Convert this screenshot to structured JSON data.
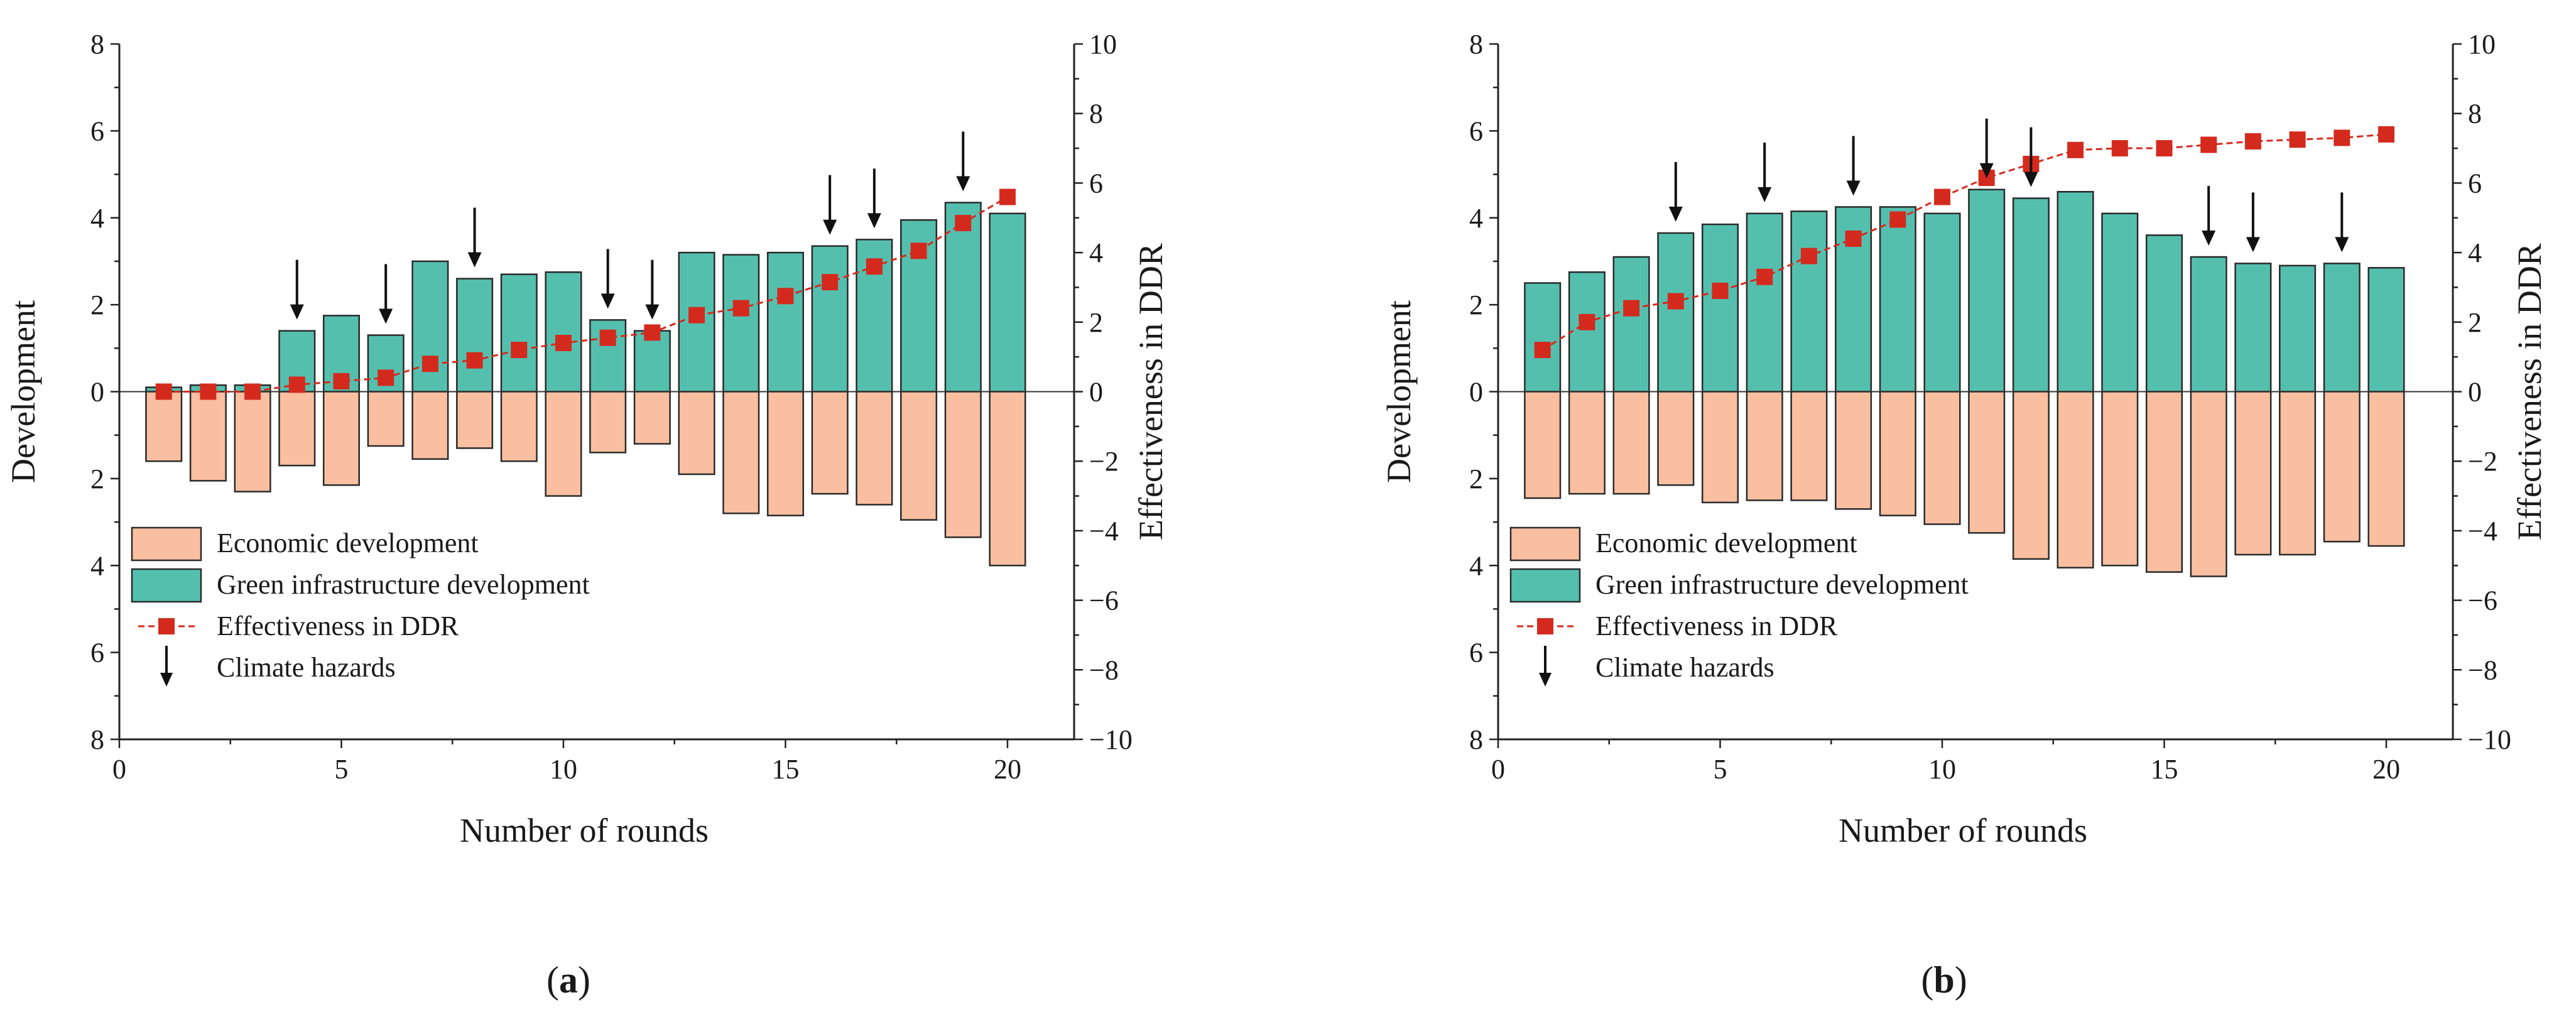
{
  "colors": {
    "economic_fill": "#F9BFA0",
    "green_fill": "#55BFAE",
    "bar_stroke": "#2a2a2a",
    "effectiveness": "#D42A1E",
    "arrow": "#111111"
  },
  "panels": [
    {
      "label_prefix": "(",
      "label_letter": "a",
      "label_suffix": ")"
    },
    {
      "label_prefix": "(",
      "label_letter": "b",
      "label_suffix": ")"
    }
  ],
  "chart_data": [
    {
      "type": "bar",
      "panel": "a",
      "xlabel": "Number of rounds",
      "ylabel_left": "Development",
      "ylabel_right": "Effectiveness in DDR",
      "xlim": [
        0,
        21.5
      ],
      "ylim_left": [
        -8,
        8
      ],
      "ylim_right": [
        -10,
        10
      ],
      "x_ticks": [
        0,
        5,
        10,
        15,
        20
      ],
      "x_tick_labels": [
        "0",
        "5",
        "10",
        "15",
        "20"
      ],
      "y_left_ticks": [
        8,
        6,
        4,
        2,
        0,
        -2,
        -4,
        -6,
        -8
      ],
      "y_left_tick_labels": [
        "8",
        "6",
        "4",
        "2",
        "0",
        "2",
        "4",
        "6",
        "8"
      ],
      "y_right_ticks": [
        10,
        8,
        6,
        4,
        2,
        0,
        -2,
        -4,
        -6,
        -8,
        -10
      ],
      "y_right_tick_labels": [
        "10",
        "8",
        "6",
        "4",
        "2",
        "0",
        "−2",
        "−4",
        "−6",
        "−8",
        "−10"
      ],
      "legend": {
        "location": "lower-left",
        "economic": "Economic development",
        "green": "Green infrastructure development",
        "effectiveness": "Effectiveness in DDR",
        "hazards": "Climate hazards"
      },
      "rounds": [
        1,
        2,
        3,
        4,
        5,
        6,
        7,
        8,
        9,
        10,
        11,
        12,
        13,
        14,
        15,
        16,
        17,
        18,
        19,
        20
      ],
      "green_infrastructure_development": [
        0.1,
        0.15,
        0.15,
        1.4,
        1.75,
        1.3,
        3.0,
        2.6,
        2.7,
        2.75,
        1.65,
        1.4,
        3.2,
        3.15,
        3.2,
        3.35,
        3.5,
        3.95,
        4.35,
        4.1
      ],
      "economic_development": [
        1.6,
        2.05,
        2.3,
        1.7,
        2.15,
        1.25,
        1.55,
        1.3,
        1.6,
        2.4,
        1.4,
        1.2,
        1.9,
        2.8,
        2.85,
        2.35,
        2.6,
        2.95,
        3.35,
        4.0
      ],
      "effectiveness_in_ddr": [
        0.0,
        0.0,
        0.0,
        0.2,
        0.3,
        0.4,
        0.8,
        0.9,
        1.2,
        1.4,
        1.55,
        1.7,
        2.2,
        2.4,
        2.75,
        3.15,
        3.6,
        4.05,
        4.85,
        5.6
      ],
      "climate_hazard_rounds": [
        4,
        6,
        8,
        11,
        12,
        16,
        17,
        19
      ]
    },
    {
      "type": "bar",
      "panel": "b",
      "xlabel": "Number of rounds",
      "ylabel_left": "Development",
      "ylabel_right": "Effectiveness in DDR",
      "xlim": [
        0,
        21.5
      ],
      "ylim_left": [
        -8,
        8
      ],
      "ylim_right": [
        -10,
        10
      ],
      "x_ticks": [
        0,
        5,
        10,
        15,
        20
      ],
      "x_tick_labels": [
        "0",
        "5",
        "10",
        "15",
        "20"
      ],
      "y_left_ticks": [
        8,
        6,
        4,
        2,
        0,
        -2,
        -4,
        -6,
        -8
      ],
      "y_left_tick_labels": [
        "8",
        "6",
        "4",
        "2",
        "0",
        "2",
        "4",
        "6",
        "8"
      ],
      "y_right_ticks": [
        10,
        8,
        6,
        4,
        2,
        0,
        -2,
        -4,
        -6,
        -8,
        -10
      ],
      "y_right_tick_labels": [
        "10",
        "8",
        "6",
        "4",
        "2",
        "0",
        "−2",
        "−4",
        "−6",
        "−8",
        "−10"
      ],
      "legend": {
        "location": "lower-left",
        "economic": "Economic development",
        "green": "Green infrastructure development",
        "effectiveness": "Effectiveness in DDR",
        "hazards": "Climate hazards"
      },
      "rounds": [
        1,
        2,
        3,
        4,
        5,
        6,
        7,
        8,
        9,
        10,
        11,
        12,
        13,
        14,
        15,
        16,
        17,
        18,
        19,
        20
      ],
      "green_infrastructure_development": [
        2.5,
        2.75,
        3.1,
        3.65,
        3.85,
        4.1,
        4.15,
        4.25,
        4.25,
        4.1,
        4.65,
        4.45,
        4.6,
        4.1,
        3.6,
        3.1,
        2.95,
        2.9,
        2.95,
        2.85
      ],
      "economic_development": [
        2.45,
        2.35,
        2.35,
        2.15,
        2.55,
        2.5,
        2.5,
        2.7,
        2.85,
        3.05,
        3.25,
        3.85,
        4.05,
        4.0,
        4.15,
        4.25,
        3.75,
        3.75,
        3.45,
        3.55
      ],
      "effectiveness_in_ddr": [
        1.2,
        2.0,
        2.4,
        2.6,
        2.9,
        3.3,
        3.9,
        4.4,
        4.95,
        5.6,
        6.15,
        6.55,
        6.95,
        7.0,
        7.0,
        7.1,
        7.2,
        7.25,
        7.3,
        7.4
      ],
      "climate_hazard_rounds": [
        4,
        6,
        8,
        11,
        12,
        16,
        17,
        19
      ]
    }
  ]
}
